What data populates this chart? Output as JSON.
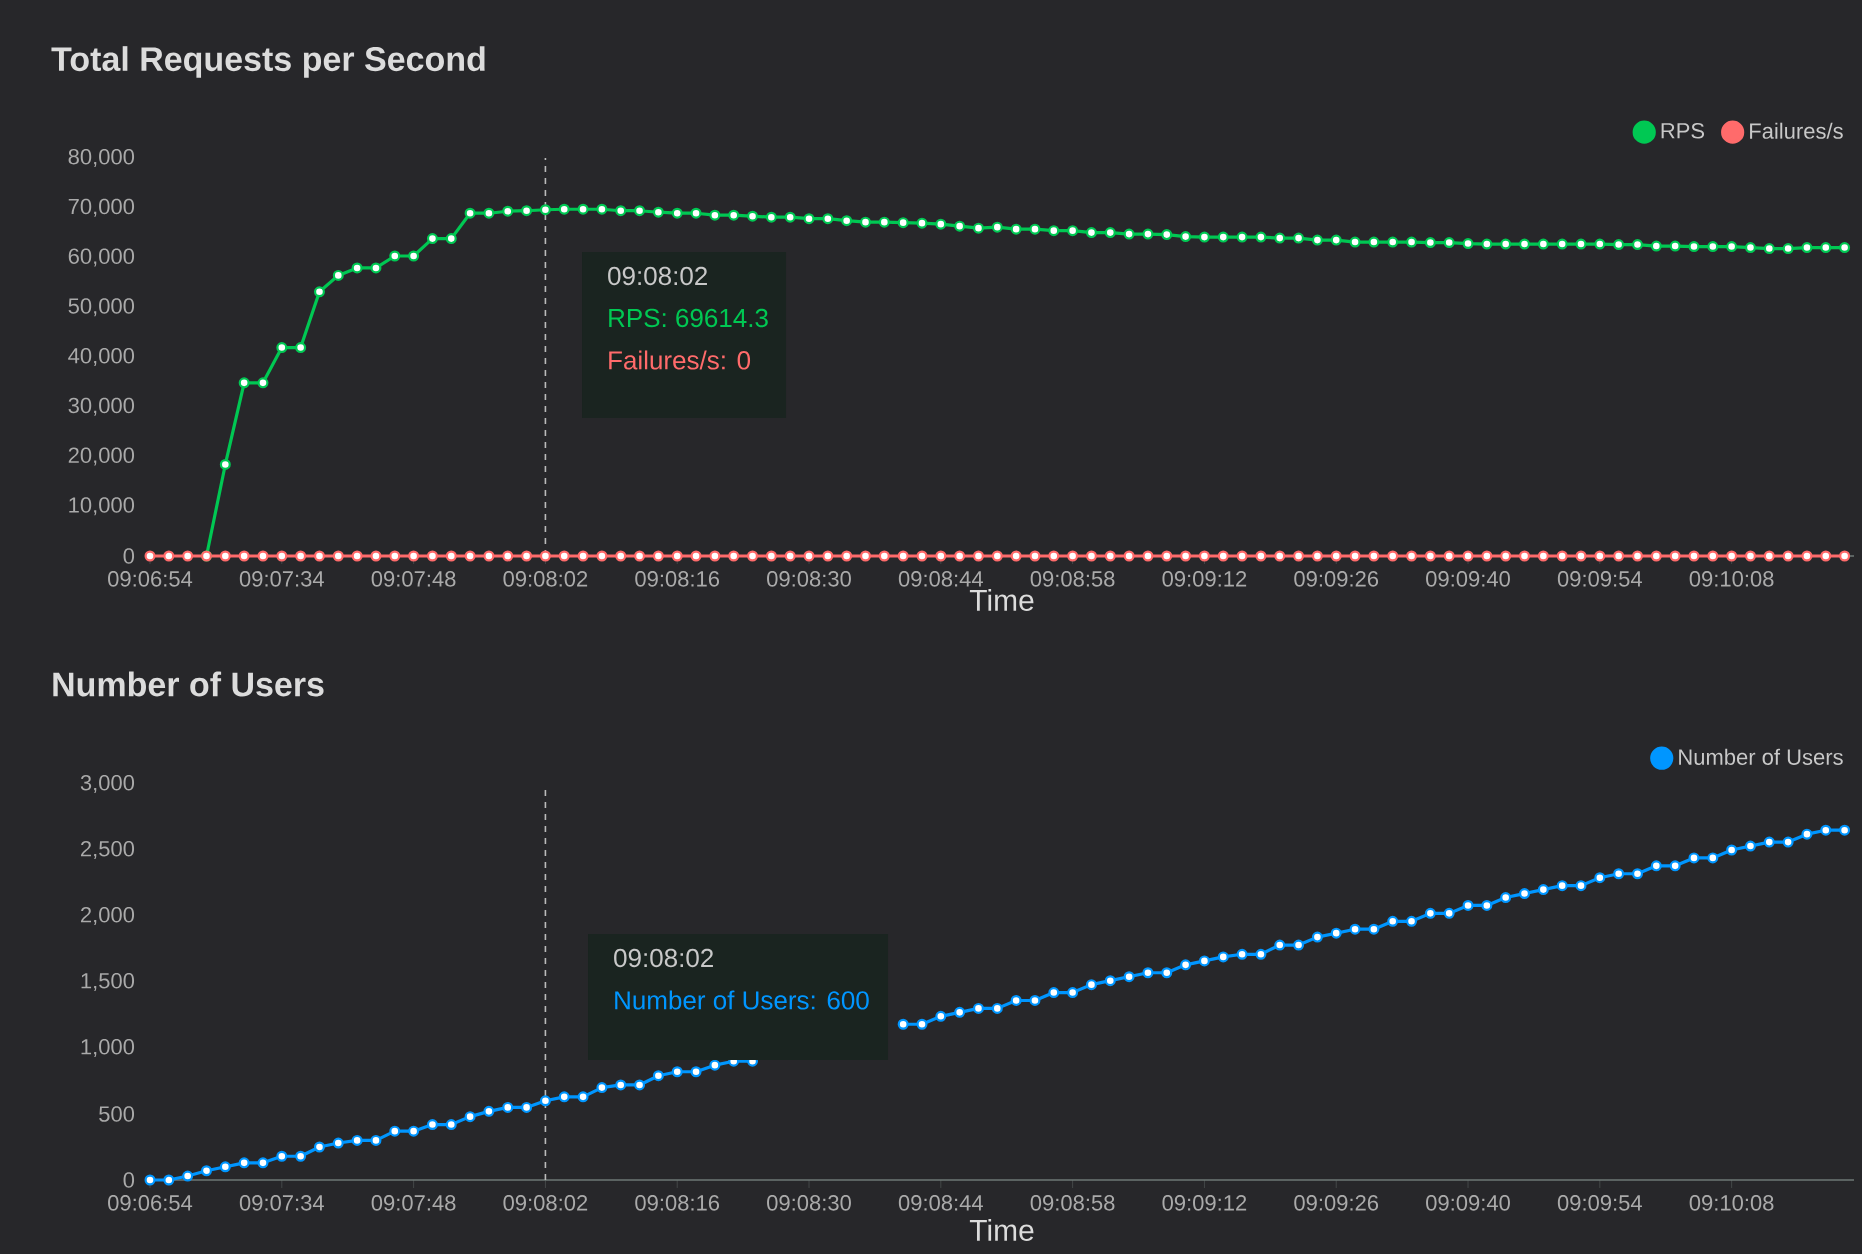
{
  "chart_data": [
    {
      "type": "line",
      "title": "Total Requests per Second",
      "xlabel": "Time",
      "categories": [
        "09:06:54",
        null,
        null,
        null,
        null,
        null,
        null,
        "09:07:34",
        null,
        null,
        null,
        null,
        null,
        null,
        "09:07:48",
        null,
        null,
        null,
        null,
        null,
        null,
        "09:08:02",
        null,
        null,
        null,
        null,
        null,
        null,
        "09:08:16",
        null,
        null,
        null,
        null,
        null,
        null,
        "09:08:30",
        null,
        null,
        null,
        null,
        null,
        null,
        "09:08:44",
        null,
        null,
        null,
        null,
        null,
        null,
        "09:08:58",
        null,
        null,
        null,
        null,
        null,
        null,
        "09:09:12",
        null,
        null,
        null,
        null,
        null,
        null,
        "09:09:26",
        null,
        null,
        null,
        null,
        null,
        null,
        "09:09:40",
        null,
        null,
        null,
        null,
        null,
        null,
        "09:09:54",
        null,
        null,
        null,
        null,
        null,
        null,
        "09:10:08",
        null,
        null,
        null,
        null,
        null,
        null
      ],
      "series": [
        {
          "name": "RPS",
          "color": "#00c853",
          "values": [
            null,
            null,
            null,
            0,
            18400,
            34800,
            34800,
            41900,
            41900,
            53100,
            56400,
            57900,
            57900,
            60300,
            60300,
            63800,
            63800,
            68900,
            68900,
            69300,
            69400,
            69600,
            69700,
            69700,
            69700,
            69400,
            69400,
            69100,
            68900,
            68900,
            68500,
            68500,
            68300,
            68100,
            68100,
            67800,
            67800,
            67400,
            67100,
            67100,
            67000,
            66900,
            66700,
            66300,
            65900,
            66100,
            65700,
            65700,
            65400,
            65400,
            65000,
            65000,
            64700,
            64700,
            64600,
            64200,
            64100,
            64100,
            64100,
            64100,
            63900,
            63900,
            63500,
            63500,
            63100,
            63100,
            63100,
            63100,
            63000,
            63000,
            62800,
            62700,
            62700,
            62700,
            62700,
            62700,
            62700,
            62700,
            62600,
            62600,
            62300,
            62300,
            62200,
            62200,
            62200,
            62000,
            61800,
            61800,
            62000,
            62000,
            62000
          ]
        },
        {
          "name": "Failures/s",
          "color": "#ff6b6b",
          "values": [
            0,
            0,
            0,
            0,
            0,
            0,
            0,
            0,
            0,
            0,
            0,
            0,
            0,
            0,
            0,
            0,
            0,
            0,
            0,
            0,
            0,
            0,
            0,
            0,
            0,
            0,
            0,
            0,
            0,
            0,
            0,
            0,
            0,
            0,
            0,
            0,
            0,
            0,
            0,
            0,
            0,
            0,
            0,
            0,
            0,
            0,
            0,
            0,
            0,
            0,
            0,
            0,
            0,
            0,
            0,
            0,
            0,
            0,
            0,
            0,
            0,
            0,
            0,
            0,
            0,
            0,
            0,
            0,
            0,
            0,
            0,
            0,
            0,
            0,
            0,
            0,
            0,
            0,
            0,
            0,
            0,
            0,
            0,
            0,
            0,
            0,
            0,
            0,
            0,
            0,
            0
          ]
        }
      ],
      "ylim": [
        0,
        80000
      ],
      "yticks": [
        0,
        {
          "value": 10000,
          "label": "10,000"
        },
        {
          "value": 20000,
          "label": "20,000"
        },
        {
          "value": 30000,
          "label": "30,000"
        },
        {
          "value": 40000,
          "label": "40,000"
        },
        {
          "value": 50000,
          "label": "50,000"
        },
        {
          "value": 60000,
          "label": "60,000"
        },
        {
          "value": 70000,
          "label": "70,000"
        },
        {
          "value": 80000,
          "label": "80,000"
        }
      ],
      "ref_lines": [
        {
          "axis": "x",
          "value": "09:08:02",
          "color": "#bbbbbb",
          "line_style": "dashed"
        }
      ],
      "annotations": [
        "09:08:02",
        "RPS: 69614.3",
        "Failures/s: 0"
      ],
      "grid": false,
      "legend": "top right",
      "marker": "circle",
      "line_style": "solid"
    },
    {
      "type": "line",
      "title": "Number of Users",
      "xlabel": "Time",
      "categories": [
        "09:06:54",
        null,
        null,
        null,
        null,
        null,
        null,
        "09:07:34",
        null,
        null,
        null,
        null,
        null,
        null,
        "09:07:48",
        null,
        null,
        null,
        null,
        null,
        null,
        "09:08:02",
        null,
        null,
        null,
        null,
        null,
        null,
        "09:08:16",
        null,
        null,
        null,
        null,
        null,
        null,
        "09:08:30",
        null,
        null,
        null,
        null,
        null,
        null,
        "09:08:44",
        null,
        null,
        null,
        null,
        null,
        null,
        "09:08:58",
        null,
        null,
        null,
        null,
        null,
        null,
        "09:09:12",
        null,
        null,
        null,
        null,
        null,
        null,
        "09:09:26",
        null,
        null,
        null,
        null,
        null,
        null,
        "09:09:40",
        null,
        null,
        null,
        null,
        null,
        null,
        "09:09:54",
        null,
        null,
        null,
        null,
        null,
        null,
        "09:10:08",
        null,
        null,
        null,
        null,
        null,
        null
      ],
      "series": [
        {
          "name": "Number of Users",
          "color": "#0096ff",
          "values": [
            0,
            0,
            30,
            70,
            100,
            130,
            130,
            180,
            180,
            250,
            280,
            300,
            300,
            370,
            370,
            420,
            420,
            480,
            520,
            550,
            550,
            600,
            630,
            630,
            700,
            720,
            720,
            790,
            820,
            820,
            870,
            900,
            900,
            null,
            null,
            null,
            null,
            null,
            null,
            null,
            1180,
            1180,
            1240,
            1270,
            1300,
            1300,
            1360,
            1360,
            1420,
            1420,
            1480,
            1510,
            1540,
            1570,
            1570,
            1630,
            1660,
            1690,
            1710,
            1710,
            1780,
            1780,
            1840,
            1870,
            1900,
            1900,
            1960,
            1960,
            2020,
            2020,
            2080,
            2080,
            2140,
            2170,
            2200,
            2230,
            2230,
            2290,
            2320,
            2320,
            2380,
            2380,
            2440,
            2440,
            2500,
            2530,
            2560,
            2560,
            2620,
            2650,
            2650
          ]
        }
      ],
      "ylim": [
        0,
        3000
      ],
      "yticks": [
        0,
        500,
        {
          "value": 1000,
          "label": "1,000"
        },
        {
          "value": 1500,
          "label": "1,500"
        },
        {
          "value": 2000,
          "label": "2,000"
        },
        {
          "value": 2500,
          "label": "2,500"
        },
        {
          "value": 3000,
          "label": "3,000"
        }
      ],
      "ref_lines": [
        {
          "axis": "x",
          "value": "09:08:02",
          "color": "#bbbbbb",
          "line_style": "dashed"
        }
      ],
      "annotations": [
        "09:08:02",
        "Number of Users: 600"
      ],
      "grid": false,
      "legend": "top right",
      "marker": "circle",
      "line_style": "solid"
    }
  ]
}
